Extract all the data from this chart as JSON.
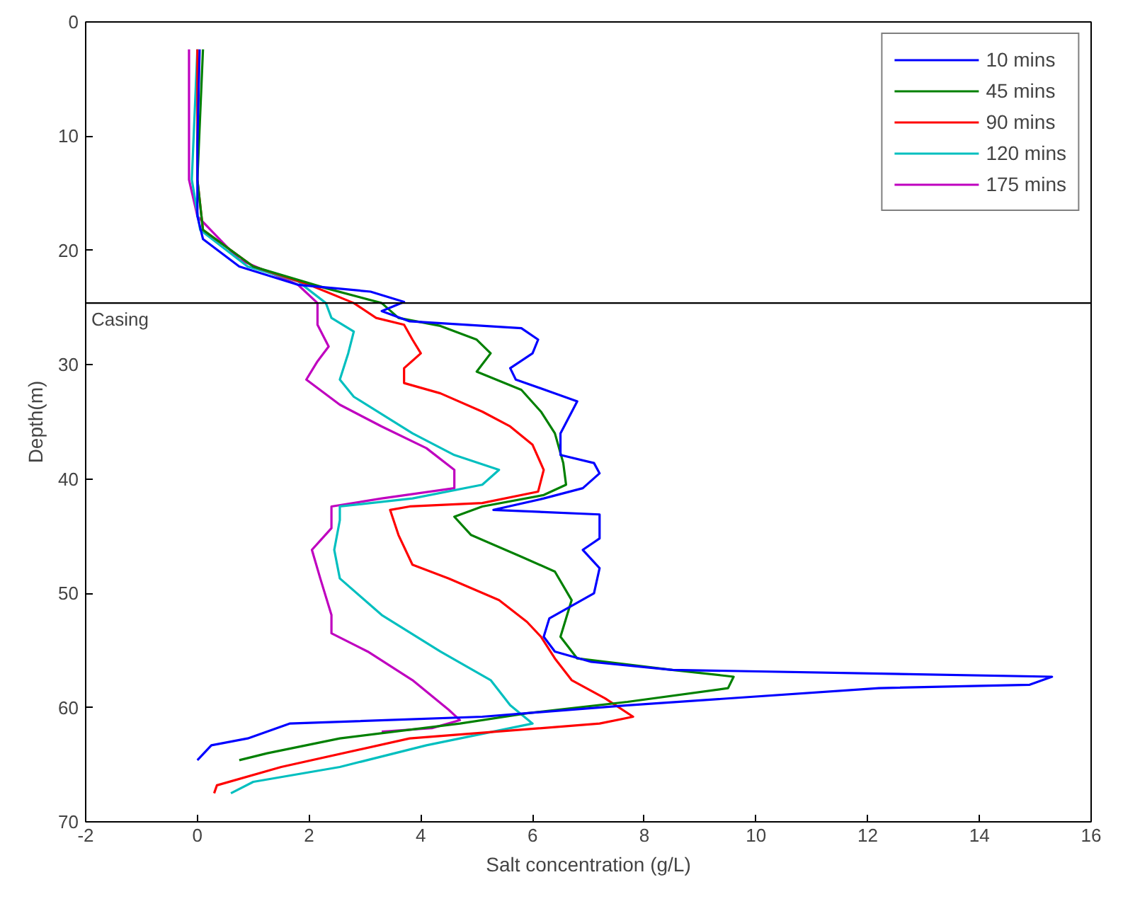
{
  "chart_data": {
    "type": "line",
    "xlabel": "Salt concentration (g/L)",
    "ylabel": "Depth(m)",
    "xlim": [
      -2,
      16
    ],
    "xticks": [
      -2,
      0,
      2,
      4,
      6,
      8,
      10,
      12,
      14,
      16
    ],
    "ylim": [
      70,
      0
    ],
    "yticks": [
      0,
      10,
      20,
      30,
      40,
      50,
      60,
      70
    ],
    "grid": false,
    "legend": "top right",
    "marker": "none",
    "line_style": "solid",
    "ref_lines": [
      {
        "axis": "y",
        "value": 24.6,
        "label": "Casing",
        "color": "#000000"
      }
    ],
    "series": [
      {
        "name": "10 mins",
        "color": "#0000ff",
        "x": [
          0.04,
          0,
          0,
          0.1,
          0.75,
          1.8,
          3.1,
          3.7,
          3.3,
          3.8,
          5.8,
          6.1,
          6.0,
          5.6,
          5.7,
          6.4,
          6.8,
          6.5,
          6.5,
          7.1,
          7.2,
          6.9,
          6.2,
          5.3,
          7.2,
          7.2,
          6.9,
          7.2,
          7.1,
          6.3,
          6.2,
          6.4,
          7.05,
          8.5,
          15.3,
          14.9,
          12.2,
          7.7,
          5.1,
          1.65,
          0.9,
          0.25,
          0
        ],
        "values": [
          2.4,
          10.6,
          17,
          19,
          21.4,
          23,
          23.6,
          24.5,
          25.3,
          26.2,
          26.8,
          27.8,
          29,
          30.3,
          31.3,
          32.5,
          33.2,
          36,
          37.9,
          38.6,
          39.5,
          40.8,
          41.7,
          42.7,
          43.1,
          45.2,
          46.2,
          47.8,
          50,
          52.2,
          53.8,
          55.1,
          56,
          56.7,
          57.3,
          58,
          58.3,
          59.8,
          60.8,
          61.4,
          62.7,
          63.3,
          64.6
        ]
      },
      {
        "name": "45 mins",
        "color": "#008000",
        "x": [
          0.1,
          0,
          0.1,
          1.0,
          2.3,
          3.3,
          3.6,
          4.35,
          5.0,
          5.25,
          5.0,
          5.8,
          6.15,
          6.4,
          6.55,
          6.6,
          6.2,
          5.1,
          4.6,
          4.9,
          5.8,
          6.4,
          6.7,
          6.5,
          6.8,
          8.5,
          9.6,
          9.5,
          7.7,
          5.9,
          4.7,
          2.55,
          1.25,
          0.75
        ],
        "values": [
          2.4,
          13.8,
          18.2,
          21.4,
          23.3,
          24.6,
          25.9,
          26.6,
          27.8,
          29,
          30.6,
          32.2,
          34.1,
          36,
          38.6,
          40.5,
          41.4,
          42.4,
          43.3,
          44.9,
          46.8,
          48.1,
          50.6,
          53.8,
          55.7,
          56.7,
          57.3,
          58.3,
          59.5,
          60.5,
          61.4,
          62.7,
          64,
          64.6
        ]
      },
      {
        "name": "90 mins",
        "color": "#ff0000",
        "x": [
          0,
          0,
          0.1,
          1,
          2.0,
          2.8,
          3.2,
          3.7,
          3.85,
          4.0,
          3.7,
          3.7,
          4.35,
          5.1,
          5.6,
          6.0,
          6.2,
          6.1,
          5.1,
          3.8,
          3.45,
          3.6,
          3.85,
          4.5,
          5.4,
          5.9,
          6.15,
          6.4,
          6.7,
          7.3,
          7.8,
          7.2,
          3.8,
          1.5,
          0.35,
          0.3
        ],
        "values": [
          2.4,
          13.8,
          18.2,
          21.4,
          23,
          24.6,
          25.9,
          26.5,
          27.8,
          29,
          30.3,
          31.6,
          32.5,
          34.1,
          35.4,
          37,
          39.2,
          41.1,
          42.1,
          42.4,
          42.7,
          44.9,
          47.5,
          48.7,
          50.6,
          52.5,
          53.8,
          55.7,
          57.6,
          59.2,
          60.8,
          61.4,
          62.7,
          65.2,
          66.8,
          67.5
        ]
      },
      {
        "name": "120 mins",
        "color": "#00bfbf",
        "x": [
          0,
          -0.1,
          0.05,
          0.9,
          1.8,
          2.3,
          2.4,
          2.8,
          2.7,
          2.55,
          2.8,
          3.85,
          4.6,
          5.4,
          5.1,
          3.85,
          2.55,
          2.55,
          2.45,
          2.55,
          3.3,
          4.35,
          5.25,
          5.6,
          6.0,
          4.1,
          2.55,
          1.0,
          0.6
        ],
        "values": [
          2.4,
          13.8,
          18.2,
          21.4,
          22.7,
          24.6,
          25.9,
          27.1,
          29,
          31.3,
          32.8,
          36,
          37.9,
          39.2,
          40.5,
          41.7,
          42.4,
          43.6,
          46.2,
          48.7,
          51.9,
          55.1,
          57.6,
          59.8,
          61.4,
          63.3,
          65.2,
          66.5,
          67.5
        ]
      },
      {
        "name": "175 mins",
        "color": "#bf00bf",
        "x": [
          -0.15,
          -0.15,
          0,
          0.75,
          1.8,
          2.15,
          2.15,
          2.35,
          2.15,
          1.95,
          2.55,
          3.3,
          4.1,
          4.6,
          4.6,
          3.3,
          2.4,
          2.4,
          2.05,
          2.2,
          2.4,
          2.4,
          3.05,
          3.85,
          4.5,
          4.7,
          4.2,
          3.3
        ],
        "values": [
          2.4,
          13.8,
          17,
          20.8,
          23,
          24.6,
          26.5,
          28.4,
          29.7,
          31.3,
          33.5,
          35.4,
          37.3,
          39.2,
          40.8,
          41.7,
          42.4,
          44.3,
          46.2,
          48.7,
          51.9,
          53.5,
          55.1,
          57.6,
          60.2,
          61.1,
          61.8,
          62.1
        ]
      }
    ]
  }
}
